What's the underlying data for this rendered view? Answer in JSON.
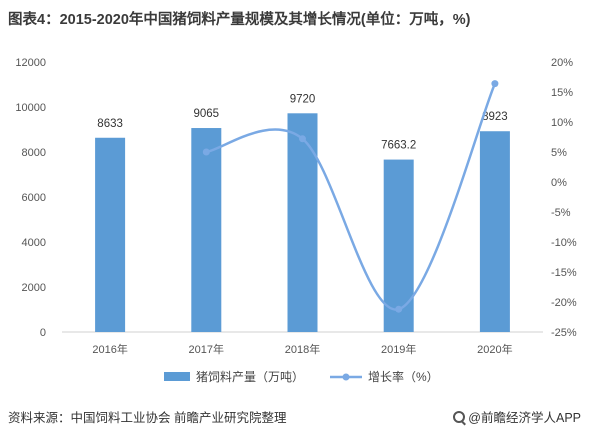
{
  "title": "图表4：2015-2020年中国猪饲料产量规模及其增长情况(单位：万吨，%)",
  "chart_data": {
    "type": "bar+line",
    "categories": [
      "2016年",
      "2017年",
      "2018年",
      "2019年",
      "2020年"
    ],
    "series": [
      {
        "name": "猪饲料产量（万吨）",
        "type": "bar",
        "axis": "left",
        "values": [
          8633,
          9065,
          9720,
          7663.2,
          8923
        ],
        "labels": [
          "8633",
          "9065",
          "9720",
          "7663.2",
          "8923"
        ],
        "color": "#5b9bd5"
      },
      {
        "name": "增长率（%）",
        "type": "line",
        "axis": "right",
        "values": [
          null,
          5.0,
          7.2,
          -21.2,
          16.4
        ],
        "color": "#7aa9e4"
      }
    ],
    "yaxis_left": {
      "min": 0,
      "max": 12000,
      "ticks": [
        "0",
        "2000",
        "4000",
        "6000",
        "8000",
        "10000",
        "12000"
      ]
    },
    "yaxis_right": {
      "min": -25,
      "max": 20,
      "ticks": [
        "-25%",
        "-20%",
        "-15%",
        "-10%",
        "-5%",
        "0%",
        "5%",
        "10%",
        "15%",
        "20%"
      ]
    },
    "legend_position": "bottom",
    "grid": false
  },
  "footer": {
    "source": "资料来源：中国饲料工业协会 前瞻产业研究院整理",
    "brand": "@前瞻经济学人APP",
    "brand_icon": "magnifier-icon"
  }
}
